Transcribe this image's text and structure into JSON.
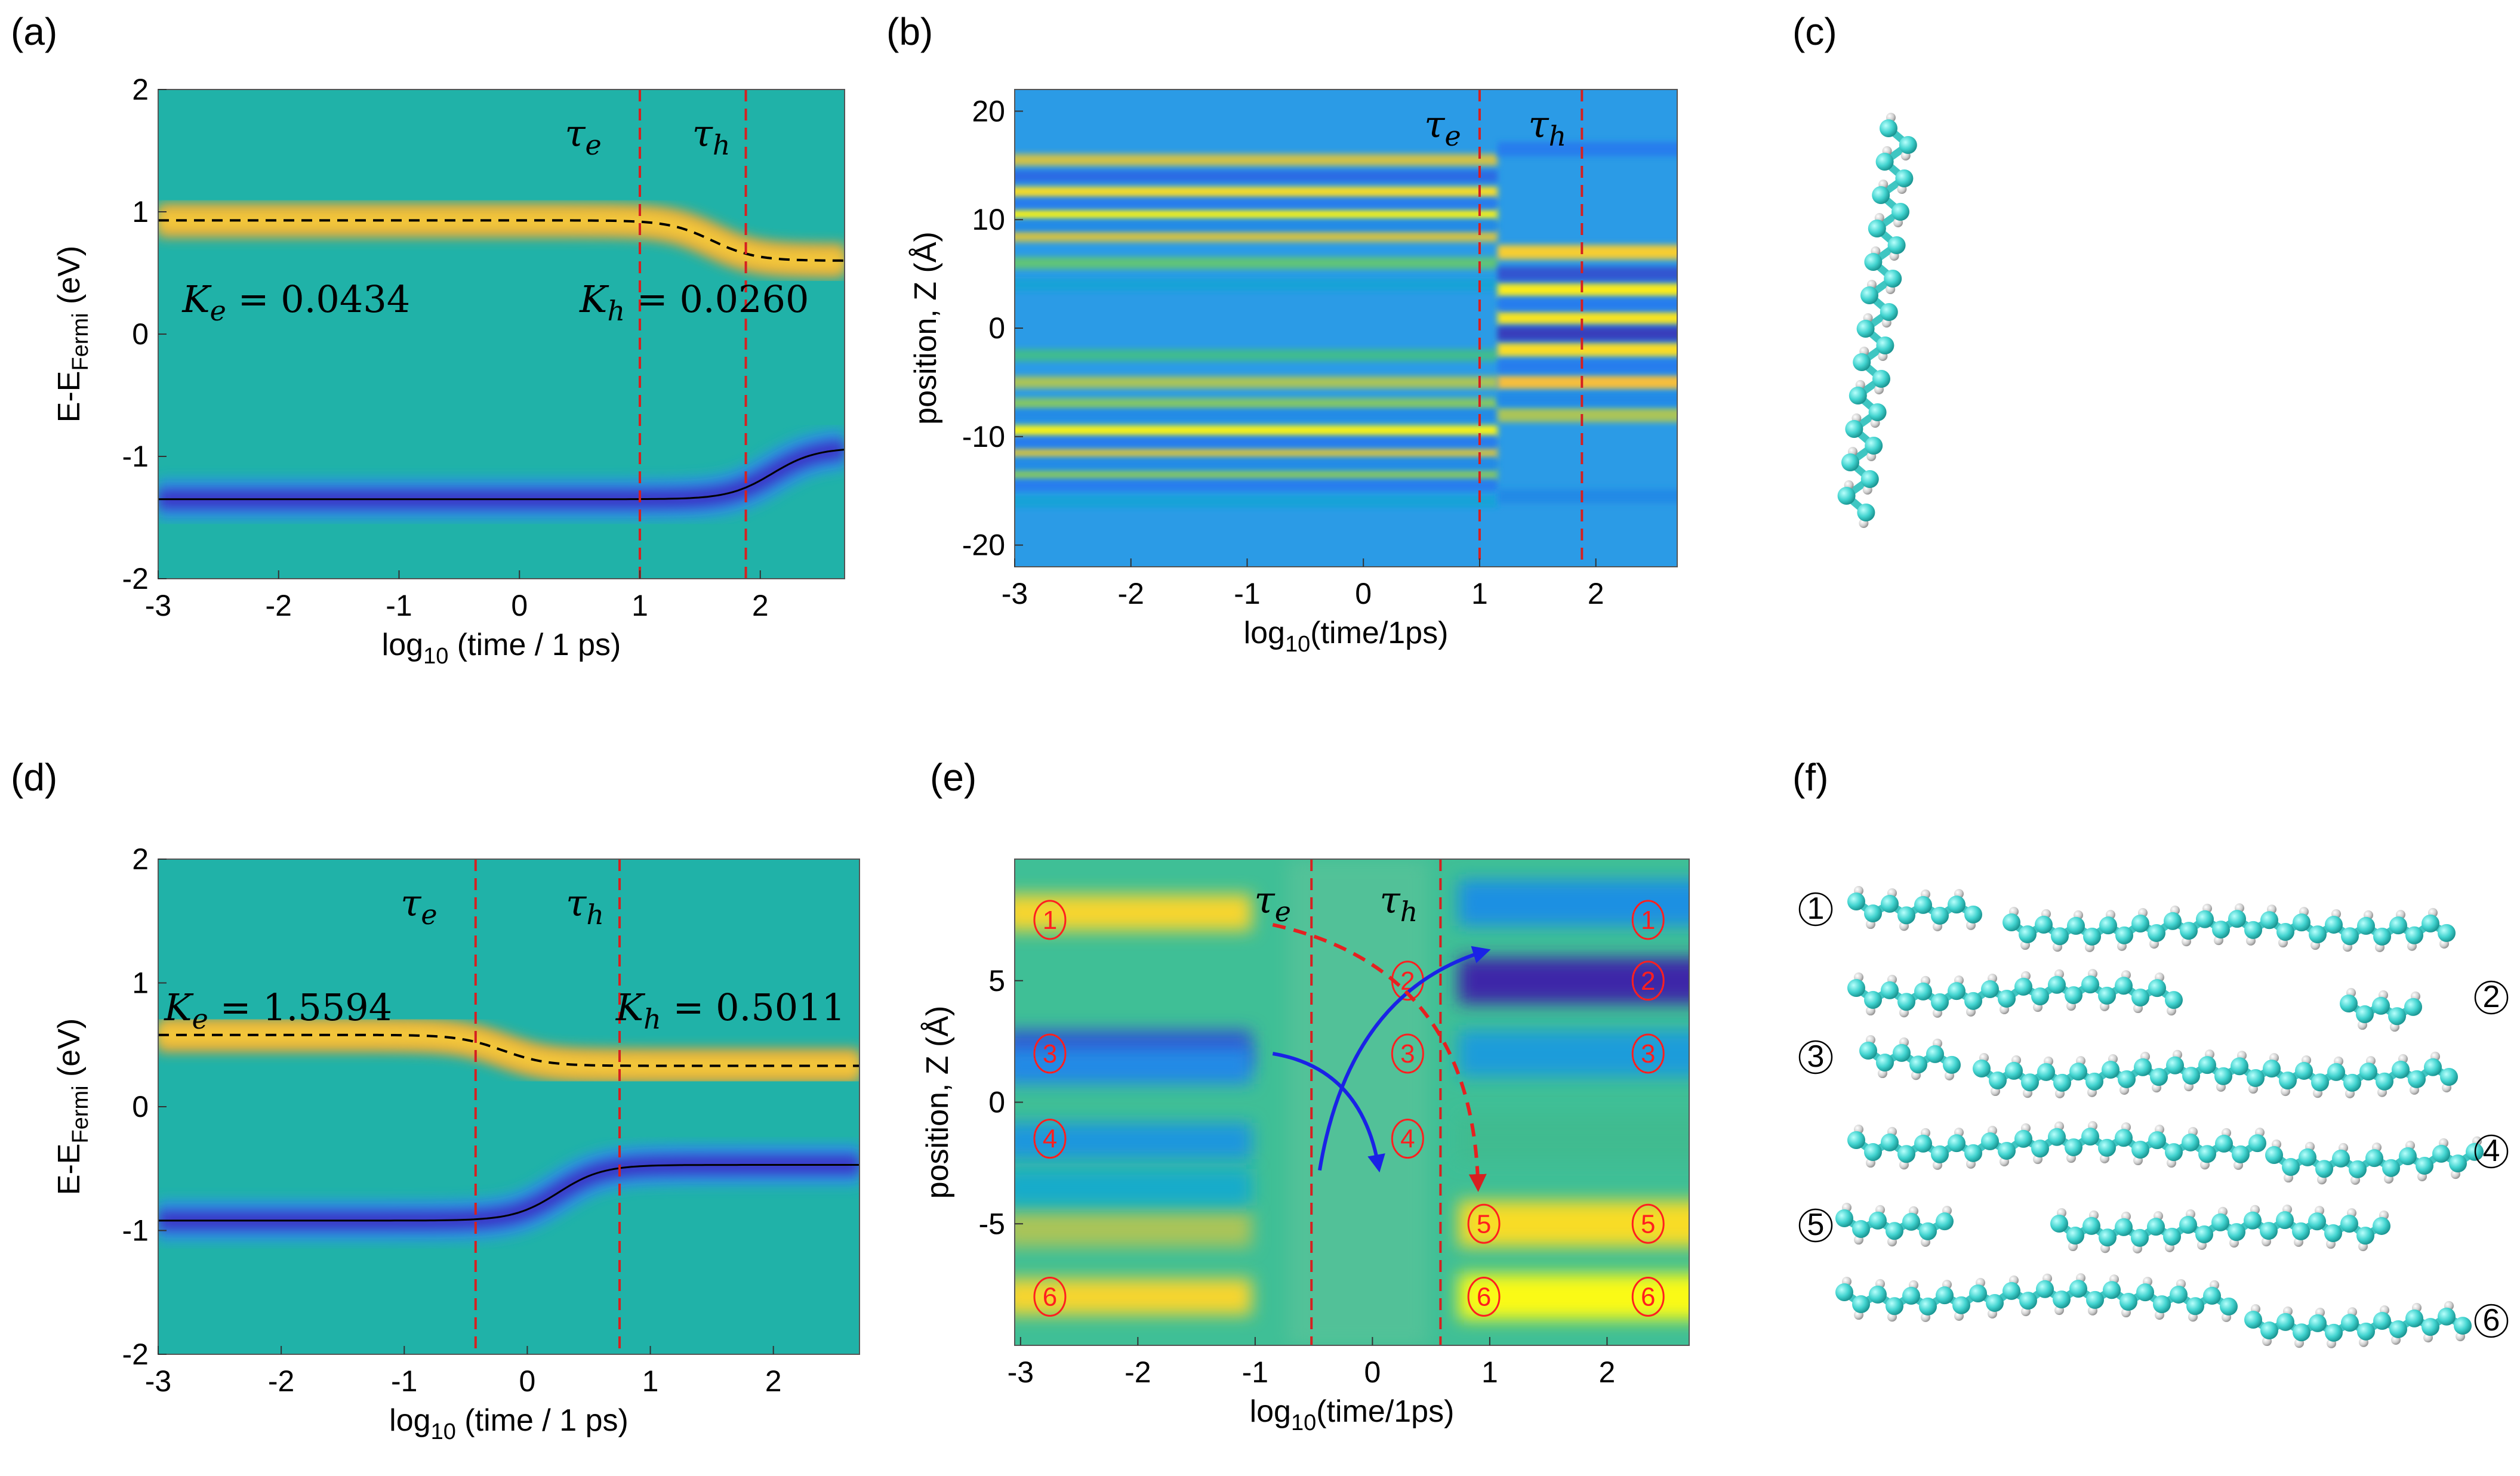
{
  "figure": {
    "panel_labels": [
      "(a)",
      "(b)",
      "(c)",
      "(d)",
      "(e)",
      "(f)"
    ],
    "colors": {
      "background": "#20b2a8",
      "electron_band": "#f4c83a",
      "hole_band": "#3a34c8",
      "marker": "#d62020",
      "arrow_blue": "#1a22e6",
      "atom_carbon": "#42d4d0",
      "atom_hydrogen": "#c8c8c8"
    }
  },
  "panel_f_labels": [
    "①",
    "②",
    "③",
    "④",
    "⑤",
    "⑥"
  ],
  "chart_data": [
    {
      "panel": "(a)",
      "type": "heatmap",
      "xlabel": "log₁₀ (time / 1 ps)",
      "ylabel_main": "E-E",
      "ylabel_sub": "Fermi",
      "ylabel_unit": "(eV)",
      "xlim": [
        -3,
        2.7
      ],
      "ylim": [
        -2,
        2
      ],
      "xticks": [
        "-3",
        "-2",
        "-1",
        "0",
        "1",
        "2"
      ],
      "yticks": [
        "-2",
        "-1",
        "0",
        "1",
        "2"
      ],
      "tau_e": 1.0,
      "tau_h": 1.88,
      "tau_e_label": "τe",
      "tau_h_label": "τh",
      "electron_start": 0.93,
      "electron_end": 0.6,
      "electron_mid": 1.6,
      "hole_start": -1.35,
      "hole_end": -0.93,
      "hole_mid": 2.1,
      "annotations": [
        {
          "text": "Ke = 0.0434",
          "x": -2.8,
          "y": 0.18
        },
        {
          "text": "Kh = 0.0260",
          "x": 0.5,
          "y": 0.18
        }
      ]
    },
    {
      "panel": "(b)",
      "type": "heatmap",
      "xlabel": "log₁₀(time/1ps)",
      "ylabel": "position, Z (Å)",
      "xlim": [
        -3,
        2.7
      ],
      "ylim": [
        -22,
        22
      ],
      "xticks": [
        "-3",
        "-2",
        "-1",
        "0",
        "1",
        "2"
      ],
      "yticks": [
        "-20",
        "-10",
        "0",
        "10",
        "20"
      ],
      "tau_e": 1.0,
      "tau_h": 1.88,
      "tau_e_label": "τe",
      "tau_h_label": "τh",
      "stripes_early": [
        {
          "z": 15.5,
          "v": 0.5
        },
        {
          "z": 12.5,
          "v": 0.8
        },
        {
          "z": 10.5,
          "v": 0.95
        },
        {
          "z": 8.5,
          "v": 0.5
        },
        {
          "z": 6,
          "v": 0.2
        },
        {
          "z": 4,
          "v": -0.3
        },
        {
          "z": -2.5,
          "v": 0.1
        },
        {
          "z": -5,
          "v": 0.4
        },
        {
          "z": -7,
          "v": 0.3
        },
        {
          "z": -9.5,
          "v": 0.95
        },
        {
          "z": -11.5,
          "v": 0.5
        },
        {
          "z": -13.5,
          "v": 0.3
        },
        {
          "z": 14,
          "v": -0.7
        },
        {
          "z": 11.5,
          "v": -0.6
        },
        {
          "z": 9.5,
          "v": -0.5
        },
        {
          "z": -8,
          "v": -0.5
        },
        {
          "z": -10.5,
          "v": -0.6
        },
        {
          "z": -12.5,
          "v": -0.5
        },
        {
          "z": -14.5,
          "v": -0.6
        },
        {
          "z": -16,
          "v": -0.3
        }
      ],
      "stripes_late": [
        {
          "z": 7,
          "v": 0.7
        },
        {
          "z": 3.5,
          "v": 0.9
        },
        {
          "z": 1,
          "v": 0.85
        },
        {
          "z": -2,
          "v": 0.8
        },
        {
          "z": -5,
          "v": 0.6
        },
        {
          "z": -8,
          "v": 0.4
        },
        {
          "z": 5,
          "v": -0.8
        },
        {
          "z": 2.2,
          "v": -0.6
        },
        {
          "z": -0.5,
          "v": -0.9
        },
        {
          "z": -3.5,
          "v": -0.6
        },
        {
          "z": -6.5,
          "v": -0.5
        },
        {
          "z": 16.5,
          "v": -0.6
        },
        {
          "z": -15.5,
          "v": -0.5
        }
      ]
    },
    {
      "panel": "(d)",
      "type": "heatmap",
      "xlabel": "log₁₀ (time / 1 ps)",
      "ylabel_main": "E-E",
      "ylabel_sub": "Fermi",
      "ylabel_unit": "(eV)",
      "xlim": [
        -3,
        2.7
      ],
      "ylim": [
        -2,
        2
      ],
      "xticks": [
        "-3",
        "-2",
        "-1",
        "0",
        "1",
        "2"
      ],
      "yticks": [
        "-2",
        "-1",
        "0",
        "1",
        "2"
      ],
      "tau_e": -0.42,
      "tau_h": 0.75,
      "tau_e_label": "τe",
      "tau_h_label": "τh",
      "electron_start": 0.58,
      "electron_end": 0.33,
      "electron_mid": -0.2,
      "hole_start": -0.92,
      "hole_end": -0.47,
      "hole_mid": 0.25,
      "annotations": [
        {
          "text": "Ke = 1.5594",
          "x": -2.95,
          "y": 0.7
        },
        {
          "text": "Kh = 0.5011",
          "x": 0.72,
          "y": 0.7
        }
      ]
    },
    {
      "panel": "(e)",
      "type": "heatmap",
      "xlabel": "log₁₀(time/1ps)",
      "ylabel": "position, Z (Å)",
      "xlim": [
        -3.05,
        2.7
      ],
      "ylim": [
        -10,
        10
      ],
      "xticks": [
        "-3",
        "-2",
        "-1",
        "0",
        "1",
        "2"
      ],
      "yticks": [
        "-5",
        "0",
        "5"
      ],
      "tau_e": -0.52,
      "tau_h": 0.58,
      "tau_e_label": "τe",
      "tau_h_label": "τh",
      "regions": [
        {
          "label": "①",
          "z": 7.5
        },
        {
          "label": "②",
          "z": 5.0
        },
        {
          "label": "③",
          "z": 2.0
        },
        {
          "label": "④",
          "z": -1.5
        },
        {
          "label": "⑤",
          "z": -5.0
        },
        {
          "label": "⑥",
          "z": -8.0
        }
      ],
      "bands_early": [
        {
          "z": 7.8,
          "v": 0.75
        },
        {
          "z": 2.2,
          "v": -0.8
        },
        {
          "z": 1.5,
          "v": -0.5
        },
        {
          "z": -1.6,
          "v": -0.4
        },
        {
          "z": -5.2,
          "v": 0.4
        },
        {
          "z": -8.0,
          "v": 0.75
        },
        {
          "z": -3.5,
          "v": -0.2
        }
      ],
      "bands_late": [
        {
          "z": 8.2,
          "v": -0.45
        },
        {
          "z": 5.0,
          "v": -1.0
        },
        {
          "z": 2.0,
          "v": -0.35
        },
        {
          "z": -1.5,
          "v": 0.1
        },
        {
          "z": -5.0,
          "v": 0.8
        },
        {
          "z": -8.0,
          "v": 1.0
        }
      ]
    }
  ]
}
